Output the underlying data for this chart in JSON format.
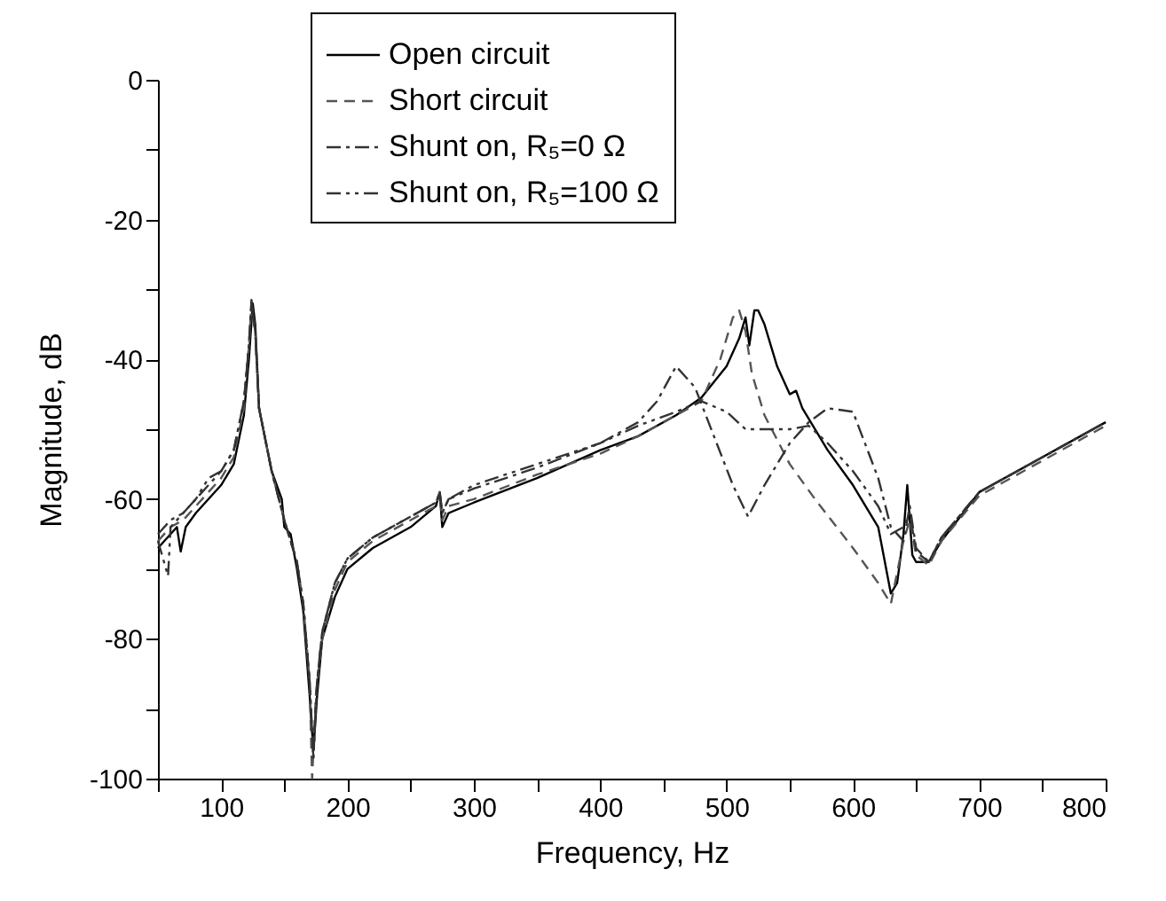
{
  "chart_data": {
    "type": "line",
    "xlabel": "Frequency, Hz",
    "ylabel": "Magnitude, dB",
    "xlim": [
      50,
      800
    ],
    "ylim": [
      -100,
      0
    ],
    "xticks": [
      {
        "value": 50,
        "label": null
      },
      100,
      {
        "value": 150,
        "label": null
      },
      200,
      {
        "value": 250,
        "label": null
      },
      300,
      {
        "value": 350,
        "label": null
      },
      400,
      {
        "value": 450,
        "label": null
      },
      500,
      {
        "value": 550,
        "label": null
      },
      600,
      {
        "value": 650,
        "label": null
      },
      700,
      {
        "value": 750,
        "label": null
      },
      800
    ],
    "yticks": [
      -100,
      {
        "value": -90,
        "label": null
      },
      -80,
      {
        "value": -70,
        "label": null
      },
      -60,
      {
        "value": -50,
        "label": null
      },
      -40,
      {
        "value": -30,
        "label": null
      },
      -20,
      {
        "value": -10,
        "label": null
      },
      0
    ],
    "grid": false,
    "legend": "top",
    "marker": "none",
    "series": [
      {
        "name": "Open circuit",
        "color": "#000000",
        "line_style": "solid",
        "x": [
          50,
          60,
          65,
          68,
          72,
          80,
          90,
          100,
          110,
          118,
          122,
          125,
          127,
          130,
          140,
          148,
          150,
          155,
          160,
          165,
          170,
          173,
          176,
          180,
          190,
          200,
          220,
          250,
          270,
          273,
          275,
          280,
          300,
          350,
          400,
          430,
          460,
          480,
          500,
          510,
          515,
          518,
          522,
          525,
          530,
          540,
          550,
          555,
          560,
          580,
          600,
          620,
          630,
          635,
          640,
          643,
          647,
          650,
          660,
          670,
          700,
          750,
          800
        ],
        "values": [
          -67,
          -65,
          -64,
          -67.5,
          -64,
          -62,
          -60,
          -58,
          -55,
          -48,
          -40,
          -32,
          -35,
          -47,
          -56,
          -60,
          -64,
          -65,
          -70,
          -76,
          -88,
          -96,
          -88,
          -80,
          -74,
          -70,
          -67,
          -64,
          -61,
          -59,
          -64,
          -62,
          -60.5,
          -57,
          -53,
          -51,
          -48,
          -45.5,
          -41,
          -37,
          -34,
          -38,
          -33,
          -33,
          -35,
          -41,
          -45,
          -44.5,
          -47,
          -53,
          -58,
          -64,
          -73.5,
          -72,
          -65,
          -58,
          -68,
          -69,
          -69,
          -66,
          -59,
          -54,
          -49
        ]
      },
      {
        "name": "Short circuit",
        "color": "#555555",
        "line_style": "dashed",
        "x": [
          50,
          60,
          70,
          80,
          90,
          100,
          110,
          118,
          122,
          124,
          127,
          130,
          140,
          150,
          160,
          165,
          170,
          172,
          175,
          180,
          190,
          200,
          220,
          250,
          270,
          273,
          275,
          280,
          300,
          350,
          400,
          430,
          460,
          480,
          495,
          505,
          510,
          515,
          520,
          530,
          550,
          570,
          600,
          620,
          630,
          640,
          645,
          650,
          660,
          670,
          700,
          750,
          800
        ],
        "values": [
          -66,
          -64,
          -63,
          -61,
          -59,
          -57,
          -54,
          -47,
          -38,
          -32,
          -36,
          -47,
          -56,
          -63,
          -69,
          -75,
          -86,
          -100,
          -88,
          -80,
          -73,
          -69,
          -66,
          -63,
          -61,
          -59,
          -63,
          -61,
          -60,
          -56.5,
          -53.5,
          -51,
          -48,
          -46,
          -40,
          -34,
          -33,
          -36,
          -42,
          -48,
          -55,
          -60,
          -67,
          -72,
          -75,
          -66,
          -63,
          -68,
          -69.5,
          -66,
          -59.5,
          -54.5,
          -49.5
        ]
      },
      {
        "name": "Shunt on, R₅=0 Ω",
        "color": "#333333",
        "line_style": "dashdot",
        "x": [
          50,
          60,
          70,
          80,
          90,
          100,
          110,
          118,
          122,
          124,
          127,
          130,
          140,
          150,
          160,
          165,
          170,
          173,
          176,
          180,
          190,
          200,
          220,
          250,
          270,
          273,
          275,
          280,
          300,
          350,
          400,
          430,
          445,
          460,
          475,
          490,
          505,
          517,
          530,
          550,
          565,
          580,
          600,
          620,
          630,
          640,
          645,
          650,
          660,
          670,
          700,
          750,
          800
        ],
        "values": [
          -65,
          -63,
          -62,
          -60,
          -58,
          -56,
          -53,
          -46,
          -38,
          -31.5,
          -36,
          -47,
          -56,
          -63,
          -69,
          -75,
          -86,
          -97,
          -86,
          -79,
          -72,
          -68.5,
          -65.5,
          -62.5,
          -60.5,
          -59,
          -62,
          -60,
          -58.5,
          -55.5,
          -52,
          -49,
          -46,
          -41,
          -44,
          -51,
          -58,
          -62.5,
          -58,
          -52,
          -49,
          -47,
          -47.5,
          -57,
          -64,
          -66,
          -61,
          -67,
          -69,
          -65.5,
          -59,
          -54,
          -49
        ]
      },
      {
        "name": "Shunt on, R₅=100 Ω",
        "color": "#333333",
        "line_style": "dashdotdot",
        "x": [
          50,
          58,
          60,
          70,
          80,
          90,
          100,
          110,
          118,
          122,
          124,
          127,
          130,
          140,
          150,
          160,
          165,
          170,
          173,
          176,
          180,
          190,
          200,
          220,
          250,
          270,
          273,
          275,
          280,
          300,
          350,
          400,
          430,
          460,
          480,
          500,
          515,
          530,
          550,
          565,
          580,
          600,
          620,
          630,
          640,
          645,
          650,
          660,
          670,
          700,
          750,
          800
        ],
        "values": [
          -66,
          -71,
          -64,
          -62,
          -60,
          -57,
          -56,
          -53,
          -46,
          -38,
          -32,
          -36,
          -47,
          -56,
          -63,
          -69,
          -75,
          -86,
          -97,
          -86,
          -79,
          -72,
          -68.5,
          -65.5,
          -62.5,
          -60.5,
          -59,
          -62,
          -60,
          -58,
          -55,
          -52,
          -49.5,
          -47.5,
          -46,
          -47.5,
          -50,
          -50,
          -50,
          -49.5,
          -52,
          -56,
          -61,
          -65,
          -64,
          -62,
          -67.5,
          -69,
          -65.5,
          -59,
          -54,
          -49
        ]
      }
    ]
  }
}
